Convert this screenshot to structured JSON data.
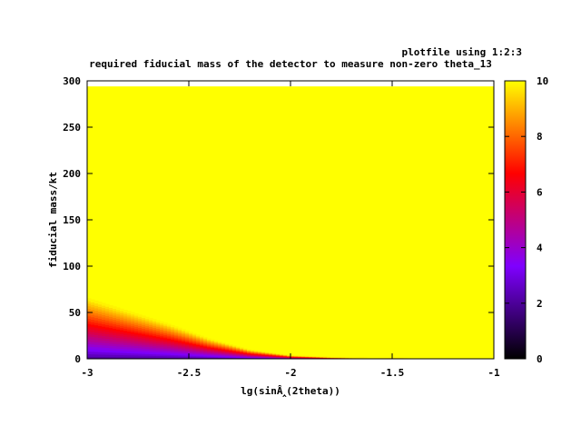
{
  "chart_data": {
    "type": "heatmap",
    "title": "required fiducial mass of the detector to measure non-zero theta_13",
    "legend_title": "plotfile using 1:2:3",
    "xlabel": "lg(sinÂ‸(2theta))",
    "ylabel": "fiducial mass/kt",
    "xlim": [
      -3,
      -1
    ],
    "ylim": [
      0,
      300
    ],
    "x_ticks": [
      -3,
      -2.5,
      -2,
      -1.5,
      -1
    ],
    "x_tick_labels": [
      "-3",
      "-2.5",
      "-2",
      "-1.5",
      "-1"
    ],
    "y_ticks": [
      0,
      50,
      100,
      150,
      200,
      250,
      300
    ],
    "y_tick_labels": [
      "0",
      "50",
      "100",
      "150",
      "200",
      "250",
      "300"
    ],
    "colorbar": {
      "range": [
        0,
        10
      ],
      "ticks": [
        0,
        2,
        4,
        6,
        8,
        10
      ],
      "tick_labels": [
        "0",
        "2",
        "4",
        "6",
        "8",
        "10"
      ],
      "colors": [
        "#000000",
        "#7f00ff",
        "#ff0000",
        "#ffff00"
      ]
    },
    "data_ymax": 294,
    "grid": false,
    "saturation_boundary": {
      "x": [
        -3.0,
        -2.8,
        -2.6,
        -2.4,
        -2.2,
        -2.0,
        -1.8,
        -1.6,
        -1.4,
        -1.2,
        -1.0
      ],
      "y": [
        66,
        52,
        38,
        22,
        10,
        4,
        2,
        1,
        0.5,
        0.2,
        0
      ]
    }
  }
}
